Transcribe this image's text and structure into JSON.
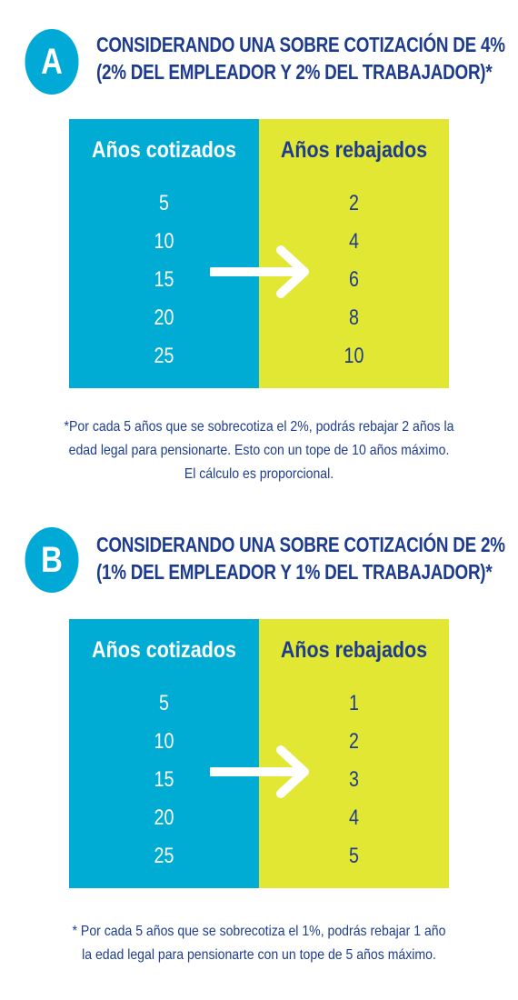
{
  "section_a": {
    "badge": "A",
    "heading_line1": "CONSIDERANDO UNA SOBRE COTIZACIÓN DE 4%",
    "heading_line2": "(2% DEL EMPLEADOR Y 2% DEL TRABAJADOR)*",
    "table": {
      "col1_header": "Años cotizados",
      "col2_header": "Años rebajados",
      "years_contributed": [
        "5",
        "10",
        "15",
        "20",
        "25"
      ],
      "years_reduced": [
        "2",
        "4",
        "6",
        "8",
        "10"
      ]
    },
    "note_lines": [
      "*Por cada 5 años que se sobrecotiza el 2%, podrás rebajar 2 años la",
      "edad legal para pensionarte. Esto con un tope de 10 años máximo.",
      "El cálculo es proporcional."
    ]
  },
  "section_b": {
    "badge": "B",
    "heading_line1": "CONSIDERANDO UNA SOBRE COTIZACIÓN DE 2%",
    "heading_line2": "(1% DEL EMPLEADOR Y 1% DEL TRABAJADOR)*",
    "table": {
      "col1_header": "Años cotizados",
      "col2_header": "Años rebajados",
      "years_contributed": [
        "5",
        "10",
        "15",
        "20",
        "25"
      ],
      "years_reduced": [
        "1",
        "2",
        "3",
        "4",
        "5"
      ]
    },
    "note_lines": [
      "* Por cada 5 años que se sobrecotiza el 1%, podrás rebajar 1 año",
      "la edad legal para pensionarte con un tope de 5 años máximo."
    ]
  },
  "colors": {
    "cyan": "#00acd3",
    "lime": "#e1e732",
    "navy": "#1d3c8f",
    "white": "#ffffff"
  },
  "icons": [
    "arrow-right-icon"
  ]
}
